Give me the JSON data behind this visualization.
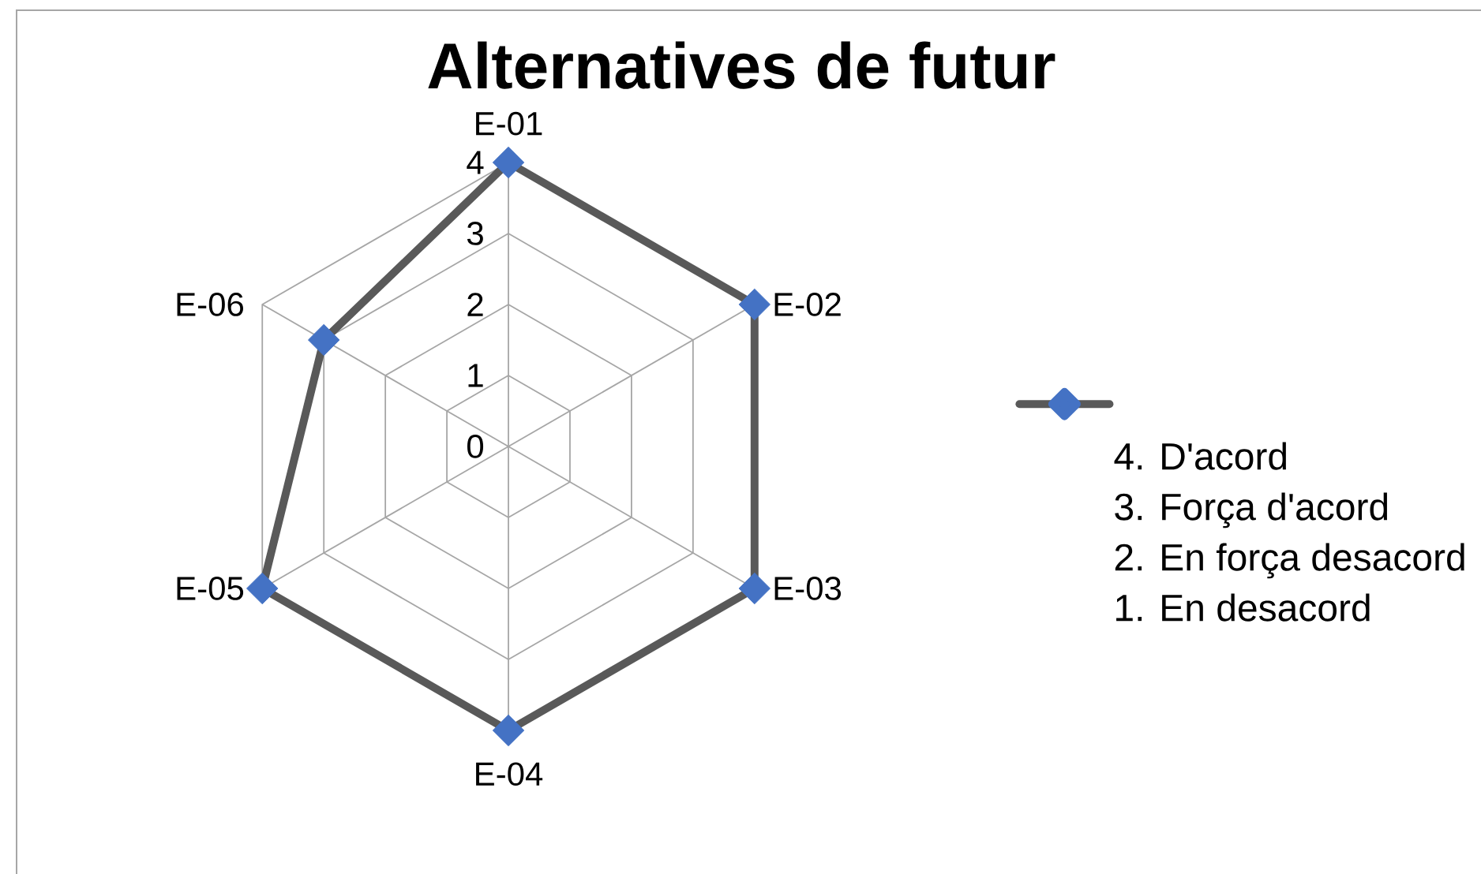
{
  "chart_data": {
    "type": "radar",
    "title": "Alternatives de futur",
    "categories": [
      "E-01",
      "E-02",
      "E-03",
      "E-04",
      "E-05",
      "E-06"
    ],
    "series": [
      {
        "name": "4. D'acord\n3. Força d'acord\n2. En força desacord\n1. En desacord",
        "color": "#595959",
        "colors": [
          "#4472c4",
          "#4472c4",
          "#4472c4",
          "#4472c4",
          "#4472c4",
          "#4472c4"
        ],
        "values": [
          4,
          4,
          4,
          4,
          4,
          3
        ]
      }
    ],
    "ylim": [
      0,
      4
    ],
    "yticks": [
      0,
      1,
      2,
      3,
      4
    ],
    "grid": true,
    "marker": "diamond",
    "legend": "right"
  }
}
